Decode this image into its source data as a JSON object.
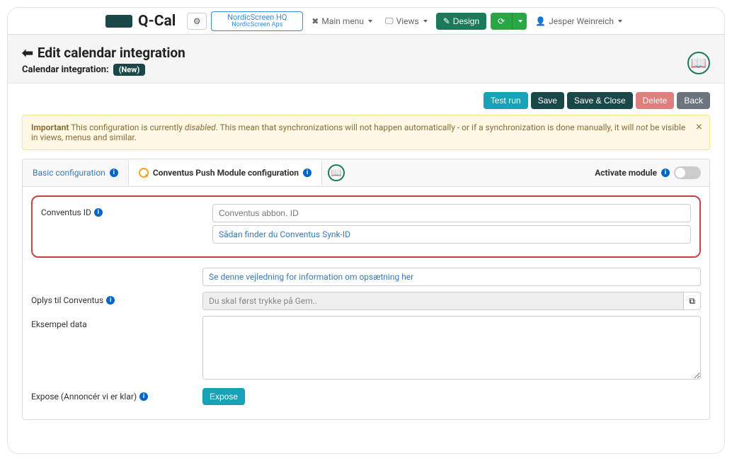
{
  "brand": {
    "name": "Q-Cal"
  },
  "topbar": {
    "org_name": "NordicScreen HQ",
    "org_sub": "NordicScreen Aps",
    "main_menu": "Main menu",
    "views": "Views",
    "design": "Design",
    "user": "Jesper Weinreich"
  },
  "header": {
    "title": "Edit calendar integration",
    "subtitle": "Calendar integration:",
    "new_badge": "(New)"
  },
  "actions": {
    "test_run": "Test run",
    "save": "Save",
    "save_close": "Save & Close",
    "delete": "Delete",
    "back": "Back"
  },
  "alert": {
    "lead": "Important",
    "part1": " This configuration is currently ",
    "em1": "disabled",
    "part2": ". This mean that synchronizations will not happen automatically - or if a synchronization is done manually, it will ",
    "em2": "not",
    "part3": " be visible in views, menus and similar."
  },
  "tabs": {
    "basic": "Basic configuration",
    "conventus": "Conventus Push Module configuration",
    "activate": "Activate module"
  },
  "form": {
    "conventus_id_label": "Conventus ID",
    "conventus_id_placeholder": "Conventus abbon. ID",
    "conventus_id_hint": "Sådan finder du Conventus Synk-ID",
    "guide_hint": "Se denne vejledning for information om opsætning her",
    "oplys_label": "Oplys til Conventus",
    "oplys_value": "Du skal først trykke på Gem..",
    "eksempel_label": "Eksempel data",
    "expose_label": "Expose (Annoncér vi er klar)",
    "expose_btn": "Expose"
  },
  "colors": {
    "accent_dark": "#1a4848",
    "teal": "#17a2b8",
    "green": "#28a745",
    "design_green": "#1a7a5a",
    "border_blue": "#3a8dde",
    "highlight_red": "#c94141",
    "alert_bg": "#fcf8e3"
  }
}
